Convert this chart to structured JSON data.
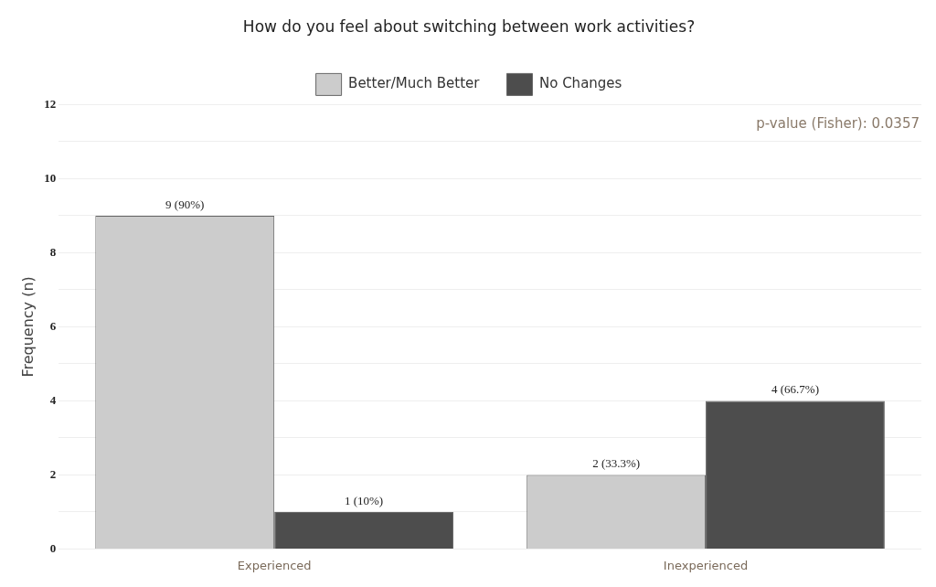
{
  "chart_data": {
    "type": "bar",
    "title": "How do you feel about switching between work activities?",
    "ylabel": "Frequency (n)",
    "categories": [
      "Experienced",
      "Inexperienced"
    ],
    "series": [
      {
        "name": "Better/Much Better",
        "color": "#cccccc",
        "values": [
          9,
          2
        ],
        "value_labels": [
          "9 (90%)",
          "2 (33.3%)"
        ]
      },
      {
        "name": "No Changes",
        "color": "#4d4d4d",
        "values": [
          1,
          4
        ],
        "value_labels": [
          "1 (10%)",
          "4 (66.7%)"
        ]
      }
    ],
    "ylim": [
      0,
      12
    ],
    "yticks": [
      0,
      {
        "value": 1,
        "label": null
      },
      2,
      {
        "value": 3,
        "label": null
      },
      4,
      {
        "value": 5,
        "label": null
      },
      6,
      {
        "value": 7,
        "label": null
      },
      8,
      {
        "value": 9,
        "label": null
      },
      10,
      {
        "value": 11,
        "label": null
      },
      12
    ],
    "grid": "y",
    "legend": "top",
    "annotations": [
      "p-value (Fisher): 0.0357"
    ]
  }
}
